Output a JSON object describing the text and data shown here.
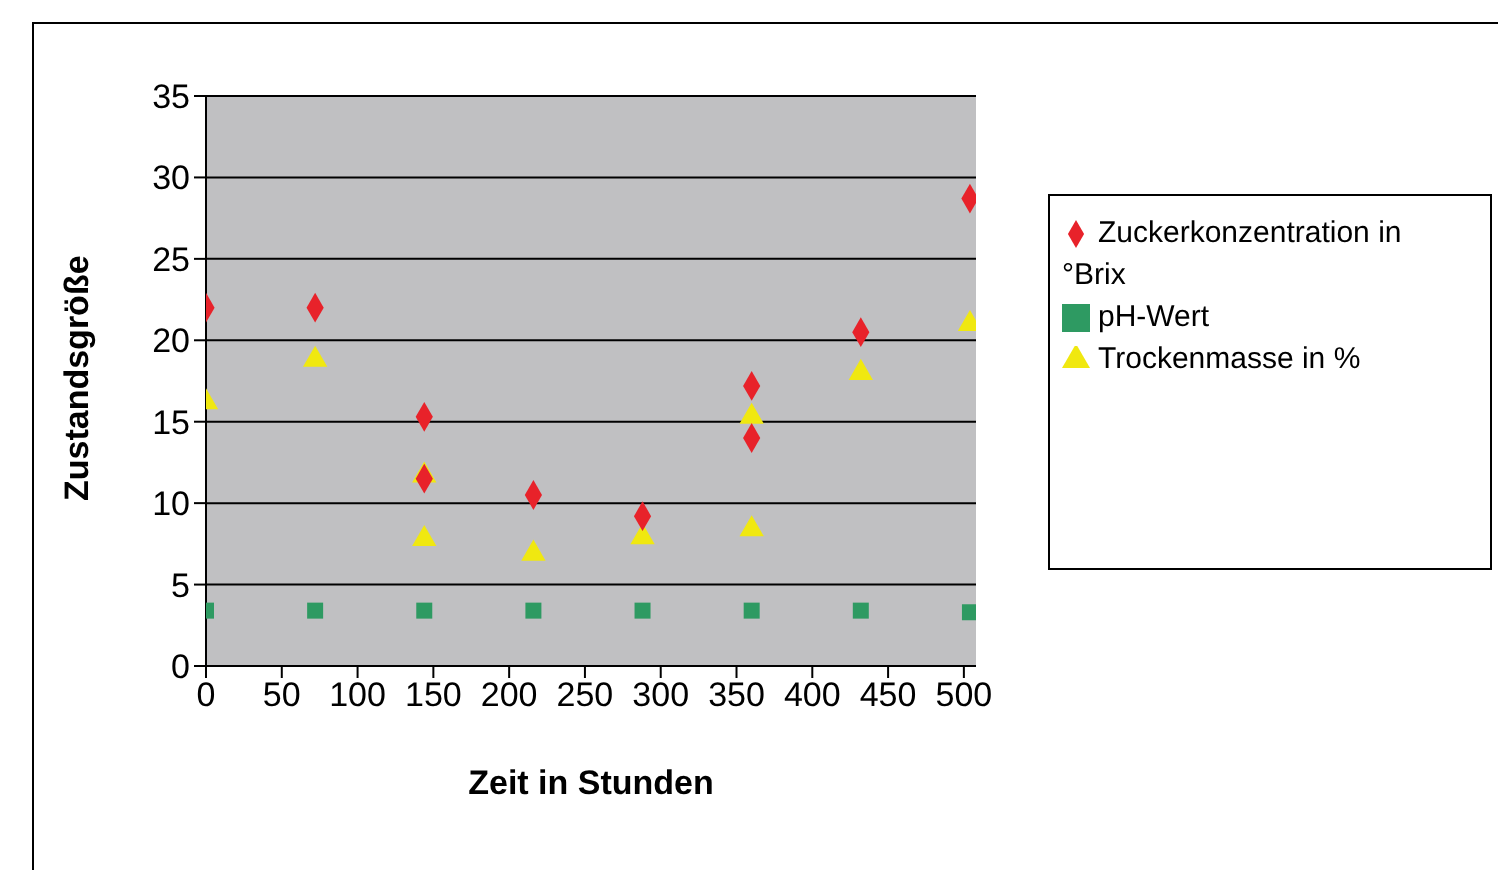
{
  "chart_data": {
    "type": "scatter",
    "xlabel": "Zeit in Stunden",
    "ylabel": "Zustandsgröße",
    "xlim": [
      0,
      508
    ],
    "xticks": [
      0,
      50,
      100,
      150,
      200,
      250,
      300,
      350,
      400,
      450,
      500
    ],
    "ylim": [
      0,
      35
    ],
    "yticks": [
      0,
      5,
      10,
      15,
      20,
      25,
      30,
      35
    ],
    "grid": "y",
    "legend": "right",
    "series": [
      {
        "name": "Zuckerkonzentration in °Brix",
        "color": "#e8222a",
        "marker": "diamond",
        "x": [
          0,
          72,
          144,
          144,
          216,
          288,
          360,
          360,
          432,
          504
        ],
        "values": [
          22.0,
          22.0,
          15.3,
          11.5,
          10.5,
          9.2,
          17.2,
          14.0,
          20.5,
          28.7
        ]
      },
      {
        "name": "pH-Wert",
        "color": "#2e9a62",
        "marker": "square",
        "x": [
          0,
          72,
          144,
          216,
          288,
          360,
          432,
          504
        ],
        "values": [
          3.4,
          3.4,
          3.4,
          3.4,
          3.4,
          3.4,
          3.4,
          3.3
        ]
      },
      {
        "name": "Trockenmasse in %",
        "color": "#f0e810",
        "marker": "triangle",
        "x": [
          0,
          72,
          144,
          144,
          216,
          288,
          360,
          360,
          432,
          504
        ],
        "values": [
          16.2,
          18.8,
          11.7,
          7.8,
          6.9,
          7.9,
          15.3,
          8.4,
          18.0,
          21.0
        ]
      }
    ]
  }
}
